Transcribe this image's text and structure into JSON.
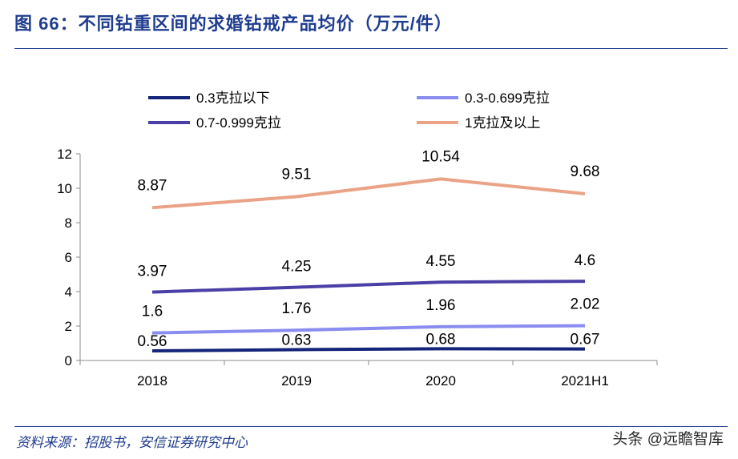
{
  "header": {
    "title": "图 66：不同钻重区间的求婚钻戒产品均价（万元/件）"
  },
  "footer": {
    "source": "资料来源：招股书，安信证券研究中心",
    "watermark": "头条 @远瞻智库"
  },
  "chart_data": {
    "type": "line",
    "title": "",
    "xlabel": "",
    "ylabel": "",
    "categories": [
      "2018",
      "2019",
      "2020",
      "2021H1"
    ],
    "ylim": [
      0,
      12
    ],
    "yticks": [
      0,
      2,
      4,
      6,
      8,
      10,
      12
    ],
    "grid": false,
    "legend_position": "top",
    "series": [
      {
        "name": "0.3克拉以下",
        "color": "#13247a",
        "values": [
          0.56,
          0.63,
          0.68,
          0.67
        ]
      },
      {
        "name": "0.3-0.699克拉",
        "color": "#8a8cf0",
        "values": [
          1.6,
          1.76,
          1.96,
          2.02
        ]
      },
      {
        "name": "0.7-0.999克拉",
        "color": "#4a3fa6",
        "values": [
          3.97,
          4.25,
          4.55,
          4.6
        ]
      },
      {
        "name": "1克拉及以上",
        "color": "#eaa386",
        "values": [
          8.87,
          9.51,
          10.54,
          9.68
        ]
      }
    ]
  }
}
